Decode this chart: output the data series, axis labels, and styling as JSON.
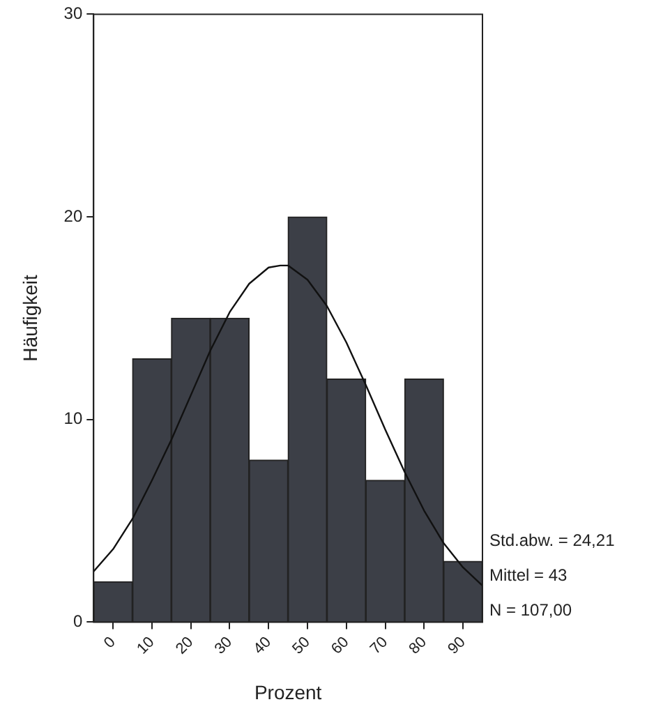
{
  "chart_data": {
    "type": "histogram",
    "xlabel": "Prozent",
    "ylabel": "Häufigkeit",
    "bins": [
      -5,
      5,
      15,
      25,
      35,
      45,
      55,
      65,
      75,
      85,
      95
    ],
    "values": [
      2,
      13,
      15,
      15,
      8,
      20,
      12,
      7,
      12,
      3
    ],
    "color": "#3c3f47",
    "series": [
      {
        "type": "line",
        "color": "#111111",
        "x": [
          -5,
          0,
          5,
          10,
          15,
          20,
          25,
          30,
          35,
          40,
          43,
          45,
          50,
          55,
          60,
          65,
          70,
          75,
          80,
          85,
          90,
          95
        ],
        "values": [
          2.5,
          3.6,
          5.1,
          7.0,
          9.0,
          11.2,
          13.4,
          15.3,
          16.7,
          17.5,
          17.6,
          17.6,
          16.9,
          15.6,
          13.8,
          11.7,
          9.5,
          7.4,
          5.5,
          3.9,
          2.7,
          1.8
        ]
      }
    ],
    "marker": "none",
    "xlim": [
      -5,
      95
    ],
    "xticks": [
      0,
      10,
      20,
      30,
      40,
      50,
      60,
      70,
      80,
      90
    ],
    "ylim": [
      0,
      30
    ],
    "yticks": [
      0,
      10,
      20,
      30
    ],
    "grid": false,
    "legend": false,
    "annotations": [
      "Std.abw. = 24,21",
      "Mittel = 43",
      "N = 107,00"
    ]
  }
}
